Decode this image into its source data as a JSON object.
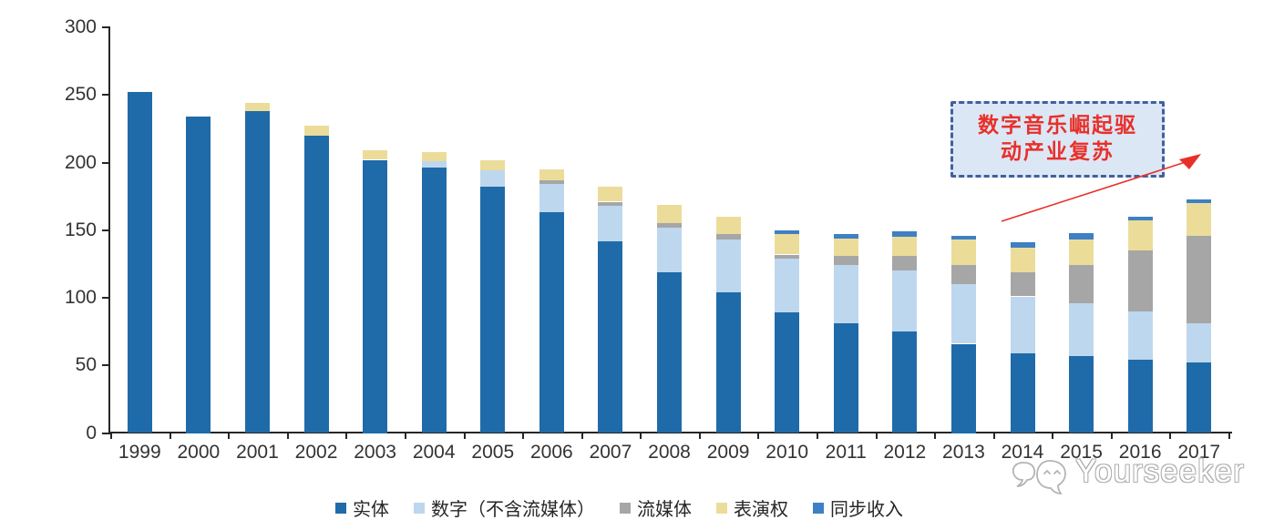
{
  "chart_data": {
    "type": "bar",
    "stacked": true,
    "title": "",
    "xlabel": "",
    "ylabel": "",
    "grid": false,
    "legend_position": "bottom",
    "ylim": [
      0,
      300
    ],
    "yticks": [
      0,
      50,
      100,
      150,
      200,
      250,
      300
    ],
    "categories": [
      "1999",
      "2000",
      "2001",
      "2002",
      "2003",
      "2004",
      "2005",
      "2006",
      "2007",
      "2008",
      "2009",
      "2010",
      "2011",
      "2012",
      "2013",
      "2014",
      "2015",
      "2016",
      "2017"
    ],
    "series": [
      {
        "name": "实体",
        "color": "#1F6BA9",
        "values": [
          252,
          234,
          238,
          220,
          202,
          196,
          182,
          163,
          142,
          119,
          104,
          89,
          81,
          75,
          66,
          59,
          57,
          54,
          52
        ]
      },
      {
        "name": "数字（不含流媒体）",
        "color": "#BDD7EE",
        "values": [
          0,
          0,
          0,
          0,
          0,
          5,
          12,
          21,
          26,
          33,
          39,
          40,
          43,
          45,
          44,
          42,
          39,
          36,
          29
        ]
      },
      {
        "name": "流媒体",
        "color": "#A6A6A6",
        "values": [
          0,
          0,
          0,
          0,
          0,
          0,
          0,
          3,
          3,
          3,
          4,
          3,
          7,
          11,
          14,
          18,
          28,
          45,
          65
        ]
      },
      {
        "name": "表演权",
        "color": "#ECDC9A",
        "values": [
          0,
          0,
          6,
          7,
          7,
          7,
          8,
          8,
          11,
          14,
          13,
          15,
          13,
          14,
          19,
          18,
          19,
          22,
          24
        ]
      },
      {
        "name": "同步收入",
        "color": "#3E80C3",
        "values": [
          0,
          0,
          0,
          0,
          0,
          0,
          0,
          0,
          0,
          0,
          0,
          3,
          3,
          4,
          3,
          4,
          5,
          3,
          3
        ]
      }
    ]
  },
  "annotation": {
    "line1": "数字音乐崛起驱",
    "line2": "动产业复苏",
    "text_color": "#E8302A",
    "border_color": "#40609E",
    "fill_color": "#DCE7F5",
    "arrow_color": "#E8302A"
  },
  "watermark": {
    "text": "Yourseeker",
    "logo": "chat-bubbles-logo-icon"
  },
  "axis_color": "#262626",
  "label_color": "#333333"
}
